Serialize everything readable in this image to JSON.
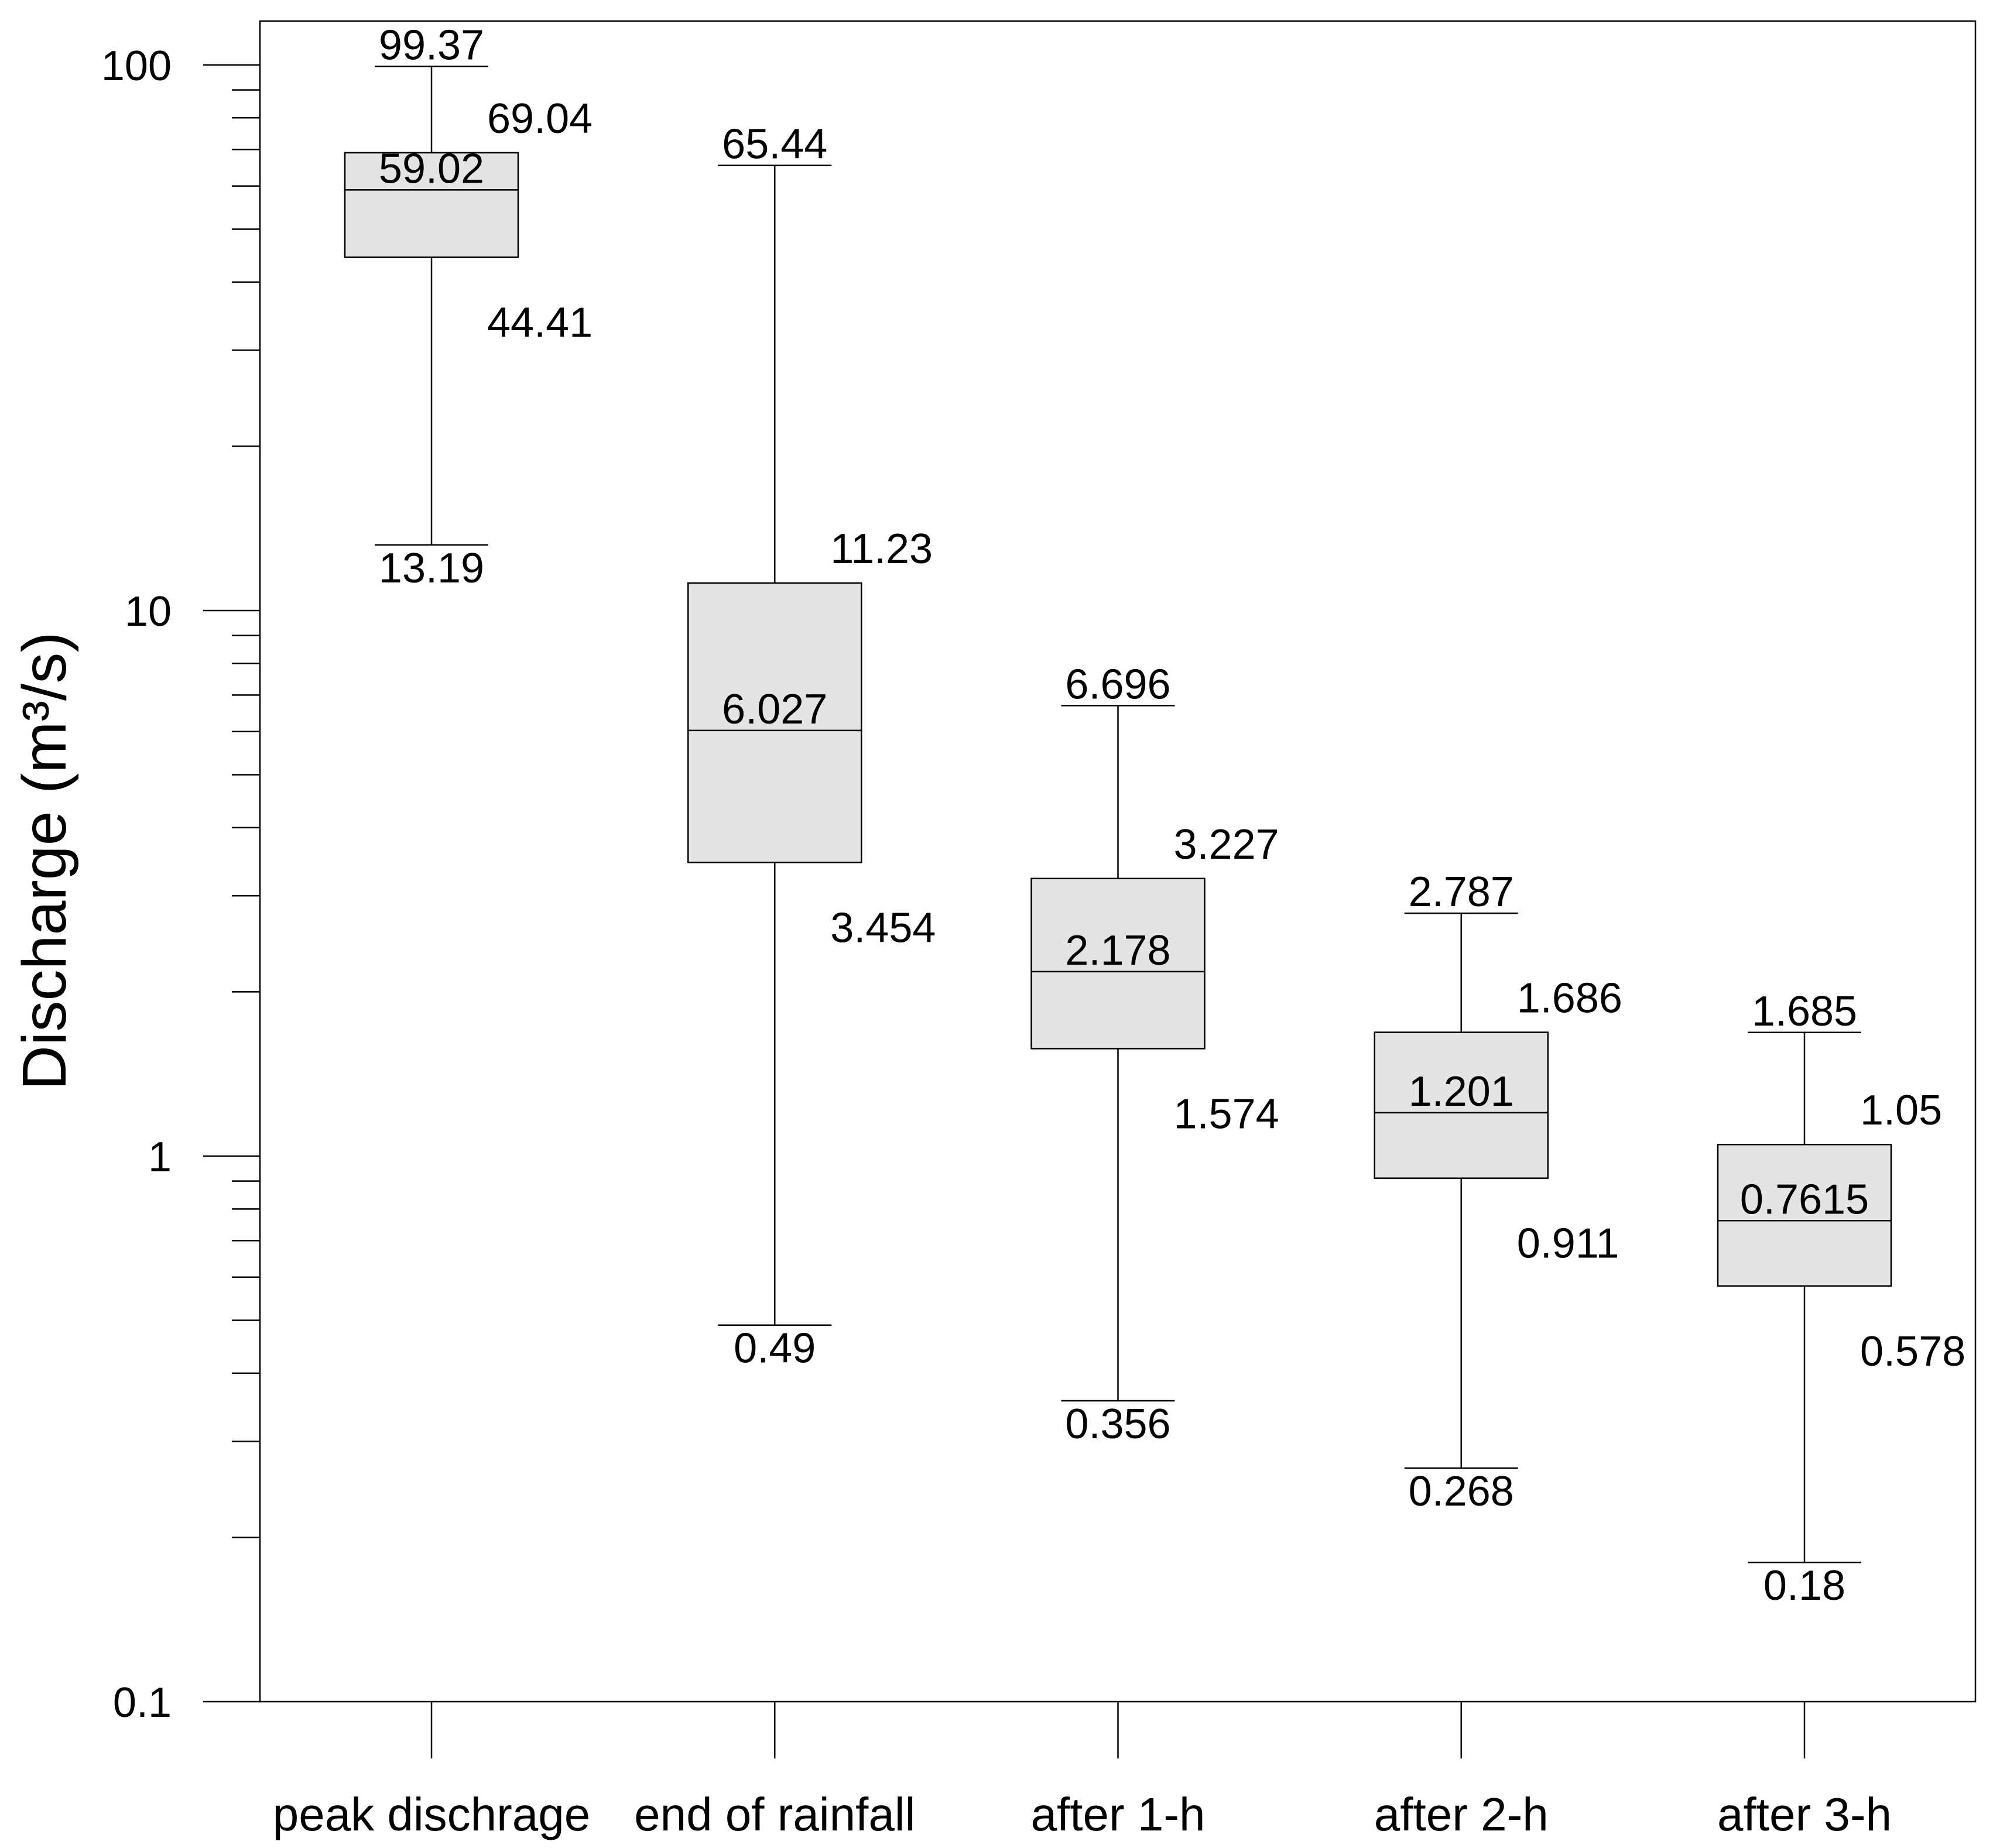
{
  "chart_data": {
    "type": "box",
    "title": "",
    "xlabel": "",
    "ylabel": "Discharge (m³/s)",
    "scale": "log",
    "y_range": [
      0.1,
      120.35
    ],
    "grid": false,
    "legend": "none",
    "box_fill": "#e4e4e4",
    "line_color": "#000000",
    "y_ticks": [
      {
        "value": 100,
        "label": "100"
      },
      {
        "value": 10,
        "label": "10"
      },
      {
        "value": 1,
        "label": "1"
      },
      {
        "value": 0.1,
        "label": "0.1"
      }
    ],
    "minor_tick_decades": [
      0.1,
      1,
      10
    ],
    "categories": [
      "peak dischrage",
      "end of rainfall",
      "after 1-h",
      "after 2-h",
      "after 3-h"
    ],
    "series": [
      {
        "category": "peak dischrage",
        "min": 13.19,
        "q1": 44.41,
        "median": 59.02,
        "q3": 69.04,
        "max": 99.37,
        "labels": {
          "min": "13.19",
          "q1": "44.41",
          "median": "59.02",
          "q3": "69.04",
          "max": "99.37"
        }
      },
      {
        "category": "end of rainfall",
        "min": 0.49,
        "q1": 3.454,
        "median": 6.027,
        "q3": 11.23,
        "max": 65.44,
        "labels": {
          "min": "0.49",
          "q1": "3.454",
          "median": "6.027",
          "q3": "11.23",
          "max": "65.44"
        }
      },
      {
        "category": "after 1-h",
        "min": 0.356,
        "q1": 1.574,
        "median": 2.178,
        "q3": 3.227,
        "max": 6.696,
        "labels": {
          "min": "0.356",
          "q1": "1.574",
          "median": "2.178",
          "q3": "3.227",
          "max": "6.696"
        }
      },
      {
        "category": "after 2-h",
        "min": 0.268,
        "q1": 0.911,
        "median": 1.201,
        "q3": 1.686,
        "max": 2.787,
        "labels": {
          "min": "0.268",
          "q1": "0.911",
          "median": "1.201",
          "q3": "1.686",
          "max": "2.787"
        }
      },
      {
        "category": "after 3-h",
        "min": 0.18,
        "q1": 0.578,
        "median": 0.7615,
        "q3": 1.05,
        "max": 1.685,
        "labels": {
          "min": "0.18",
          "q1": "0.578",
          "median": "0.7615",
          "q3": "1.05",
          "max": "1.685"
        }
      }
    ]
  }
}
